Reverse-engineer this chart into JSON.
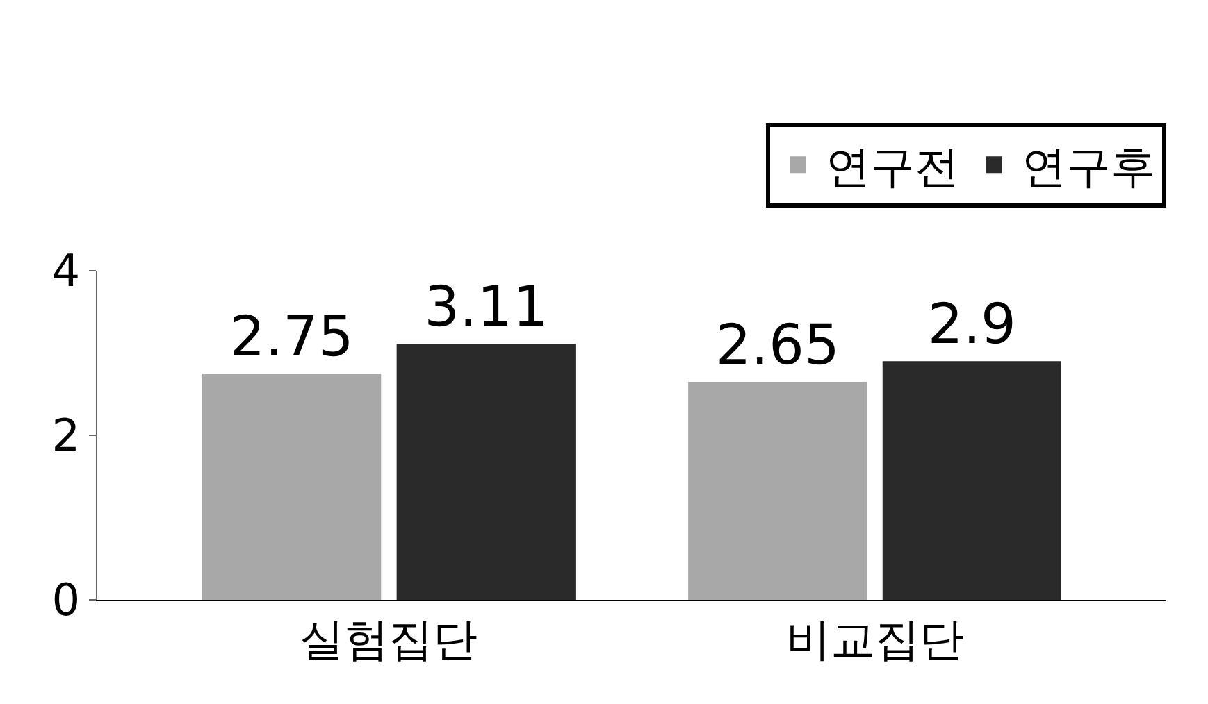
{
  "chart_data": {
    "type": "bar",
    "categories": [
      "실험집단",
      "비교집단"
    ],
    "series": [
      {
        "name": "연구전",
        "color": "#a8a8a8",
        "values": [
          2.75,
          2.65
        ]
      },
      {
        "name": "연구후",
        "color": "#2a2a2a",
        "values": [
          3.11,
          2.9
        ]
      }
    ],
    "ylim": [
      0,
      4
    ],
    "yticks": [
      0,
      2,
      4
    ],
    "data_labels": true,
    "legend": "top right"
  }
}
